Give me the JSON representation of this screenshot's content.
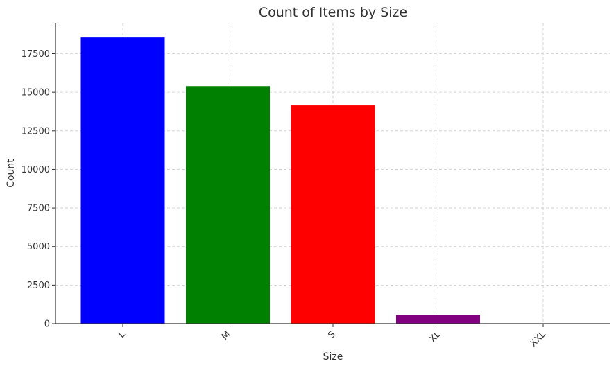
{
  "chart_data": {
    "type": "bar",
    "title": "Count of Items by Size",
    "xlabel": "Size",
    "ylabel": "Count",
    "categories": [
      "L",
      "M",
      "S",
      "XL",
      "XXL"
    ],
    "values": [
      18550,
      15400,
      14150,
      560,
      5
    ],
    "colors": [
      "#0000ff",
      "#008000",
      "#ff0000",
      "#800080",
      "#ffa500"
    ],
    "ylim": [
      0,
      19500
    ],
    "yticks": [
      0,
      2500,
      5000,
      7500,
      10000,
      12500,
      15000,
      17500
    ],
    "grid": true,
    "legend": "none"
  }
}
